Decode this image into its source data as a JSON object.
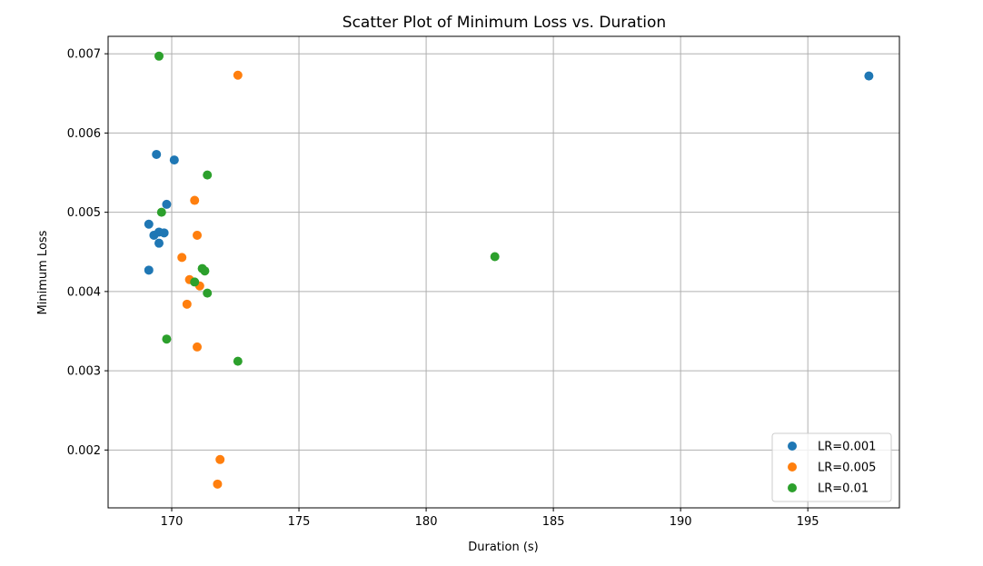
{
  "chart_data": {
    "type": "scatter",
    "title": "Scatter Plot of Minimum Loss vs. Duration",
    "xlabel": "Duration (s)",
    "ylabel": "Minimum Loss",
    "xlim": [
      167.5,
      198.6
    ],
    "ylim": [
      0.00127,
      0.00722
    ],
    "xticks": [
      170,
      175,
      180,
      185,
      190,
      195
    ],
    "xtick_labels": [
      "170",
      "175",
      "180",
      "185",
      "190",
      "195"
    ],
    "yticks": [
      0.002,
      0.003,
      0.004,
      0.005,
      0.006,
      0.007
    ],
    "ytick_labels": [
      "0.002",
      "0.003",
      "0.004",
      "0.005",
      "0.006",
      "0.007"
    ],
    "grid": true,
    "legend_position": "lower-right",
    "series": [
      {
        "name": "LR=0.001",
        "color": "#1f77b4",
        "points": [
          {
            "x": 197.4,
            "y": 0.00672
          },
          {
            "x": 169.4,
            "y": 0.00573
          },
          {
            "x": 170.1,
            "y": 0.00566
          },
          {
            "x": 169.8,
            "y": 0.0051
          },
          {
            "x": 169.1,
            "y": 0.00485
          },
          {
            "x": 169.5,
            "y": 0.00475
          },
          {
            "x": 169.3,
            "y": 0.00471
          },
          {
            "x": 169.7,
            "y": 0.00474
          },
          {
            "x": 169.5,
            "y": 0.00461
          },
          {
            "x": 169.1,
            "y": 0.00427
          }
        ]
      },
      {
        "name": "LR=0.005",
        "color": "#ff7f0e",
        "points": [
          {
            "x": 172.6,
            "y": 0.00673
          },
          {
            "x": 170.9,
            "y": 0.00515
          },
          {
            "x": 171.0,
            "y": 0.00471
          },
          {
            "x": 170.4,
            "y": 0.00443
          },
          {
            "x": 170.7,
            "y": 0.00415
          },
          {
            "x": 171.1,
            "y": 0.00407
          },
          {
            "x": 170.6,
            "y": 0.00384
          },
          {
            "x": 171.0,
            "y": 0.0033
          },
          {
            "x": 171.9,
            "y": 0.00188
          },
          {
            "x": 171.8,
            "y": 0.00157
          }
        ]
      },
      {
        "name": "LR=0.01",
        "color": "#2ca02c",
        "points": [
          {
            "x": 169.5,
            "y": 0.00697
          },
          {
            "x": 171.4,
            "y": 0.00547
          },
          {
            "x": 169.6,
            "y": 0.005
          },
          {
            "x": 182.7,
            "y": 0.00444
          },
          {
            "x": 171.2,
            "y": 0.00429
          },
          {
            "x": 171.3,
            "y": 0.00426
          },
          {
            "x": 170.9,
            "y": 0.00412
          },
          {
            "x": 171.4,
            "y": 0.00398
          },
          {
            "x": 169.8,
            "y": 0.0034
          },
          {
            "x": 172.6,
            "y": 0.00312
          }
        ]
      }
    ]
  }
}
